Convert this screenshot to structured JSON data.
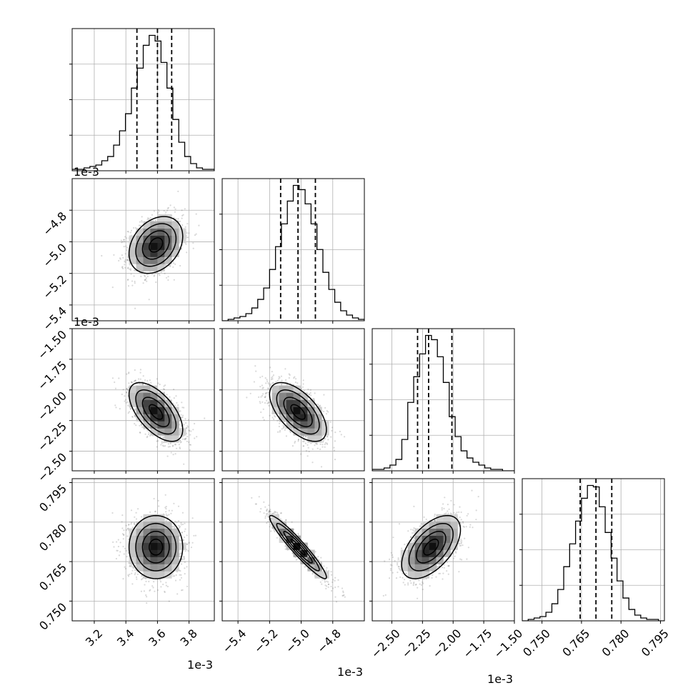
{
  "chart_data": {
    "type": "corner",
    "grid": true,
    "ndim": 4,
    "params": [
      {
        "offset": "1e-3",
        "range": [
          3.06,
          3.96
        ],
        "ticks": [
          3.2,
          3.4,
          3.6,
          3.8
        ],
        "tick_labels": [
          "3.2",
          "3.4",
          "3.6",
          "3.8"
        ],
        "quantiles": [
          3.47,
          3.6,
          3.69
        ],
        "mean": 3.59,
        "sd": 0.085
      },
      {
        "offset": "1e-3",
        "range": [
          -5.5,
          -4.6
        ],
        "ticks": [
          -5.4,
          -5.2,
          -5.0,
          -4.8
        ],
        "tick_labels": [
          "−5.4",
          "−5.2",
          "−5.0",
          "−4.8"
        ],
        "quantiles": [
          -5.13,
          -5.02,
          -4.91
        ],
        "mean": -5.02,
        "sd": 0.09
      },
      {
        "offset": "1e-3",
        "range": [
          -2.66,
          -1.5
        ],
        "ticks": [
          -2.5,
          -2.25,
          -2.0,
          -1.75,
          -1.5
        ],
        "tick_labels": [
          "−2.50",
          "−2.25",
          "−2.00",
          "−1.75",
          "−1.50"
        ],
        "quantiles": [
          -2.29,
          -2.2,
          -2.01
        ],
        "mean": -2.18,
        "sd": 0.12
      },
      {
        "offset": "",
        "range": [
          0.7425,
          0.7965
        ],
        "ticks": [
          0.75,
          0.765,
          0.78,
          0.795
        ],
        "tick_labels": [
          "0.750",
          "0.765",
          "0.780",
          "0.795"
        ],
        "quantiles": [
          0.7645,
          0.7705,
          0.7765
        ],
        "mean": 0.7705,
        "sd": 0.006
      }
    ],
    "histograms": [
      {
        "param": 0,
        "counts": [
          1,
          1,
          2,
          3,
          4,
          7,
          10,
          18,
          28,
          40,
          58,
          72,
          88,
          95,
          91,
          76,
          58,
          36,
          20,
          10,
          5,
          2,
          1,
          1
        ]
      },
      {
        "param": 1,
        "counts": [
          0,
          1,
          2,
          3,
          5,
          9,
          15,
          23,
          36,
          52,
          68,
          84,
          95,
          92,
          82,
          68,
          50,
          34,
          22,
          13,
          7,
          4,
          2,
          1
        ]
      },
      {
        "param": 2,
        "counts": [
          1,
          1,
          2,
          4,
          8,
          22,
          48,
          66,
          82,
          95,
          92,
          80,
          62,
          38,
          24,
          14,
          9,
          6,
          4,
          2,
          1,
          1,
          0,
          0
        ]
      },
      {
        "param": 3,
        "counts": [
          0,
          1,
          2,
          3,
          6,
          12,
          22,
          38,
          54,
          70,
          86,
          95,
          94,
          80,
          62,
          44,
          28,
          16,
          8,
          4,
          2,
          1,
          1,
          0
        ]
      }
    ],
    "correlations": [
      {
        "params": [
          0,
          1
        ],
        "r": 0.3
      },
      {
        "params": [
          0,
          2
        ],
        "r": -0.6
      },
      {
        "params": [
          1,
          2
        ],
        "r": -0.6
      },
      {
        "params": [
          0,
          3
        ],
        "r": 0.0
      },
      {
        "params": [
          1,
          3
        ],
        "r": -0.95
      },
      {
        "params": [
          2,
          3
        ],
        "r": 0.55
      }
    ]
  }
}
